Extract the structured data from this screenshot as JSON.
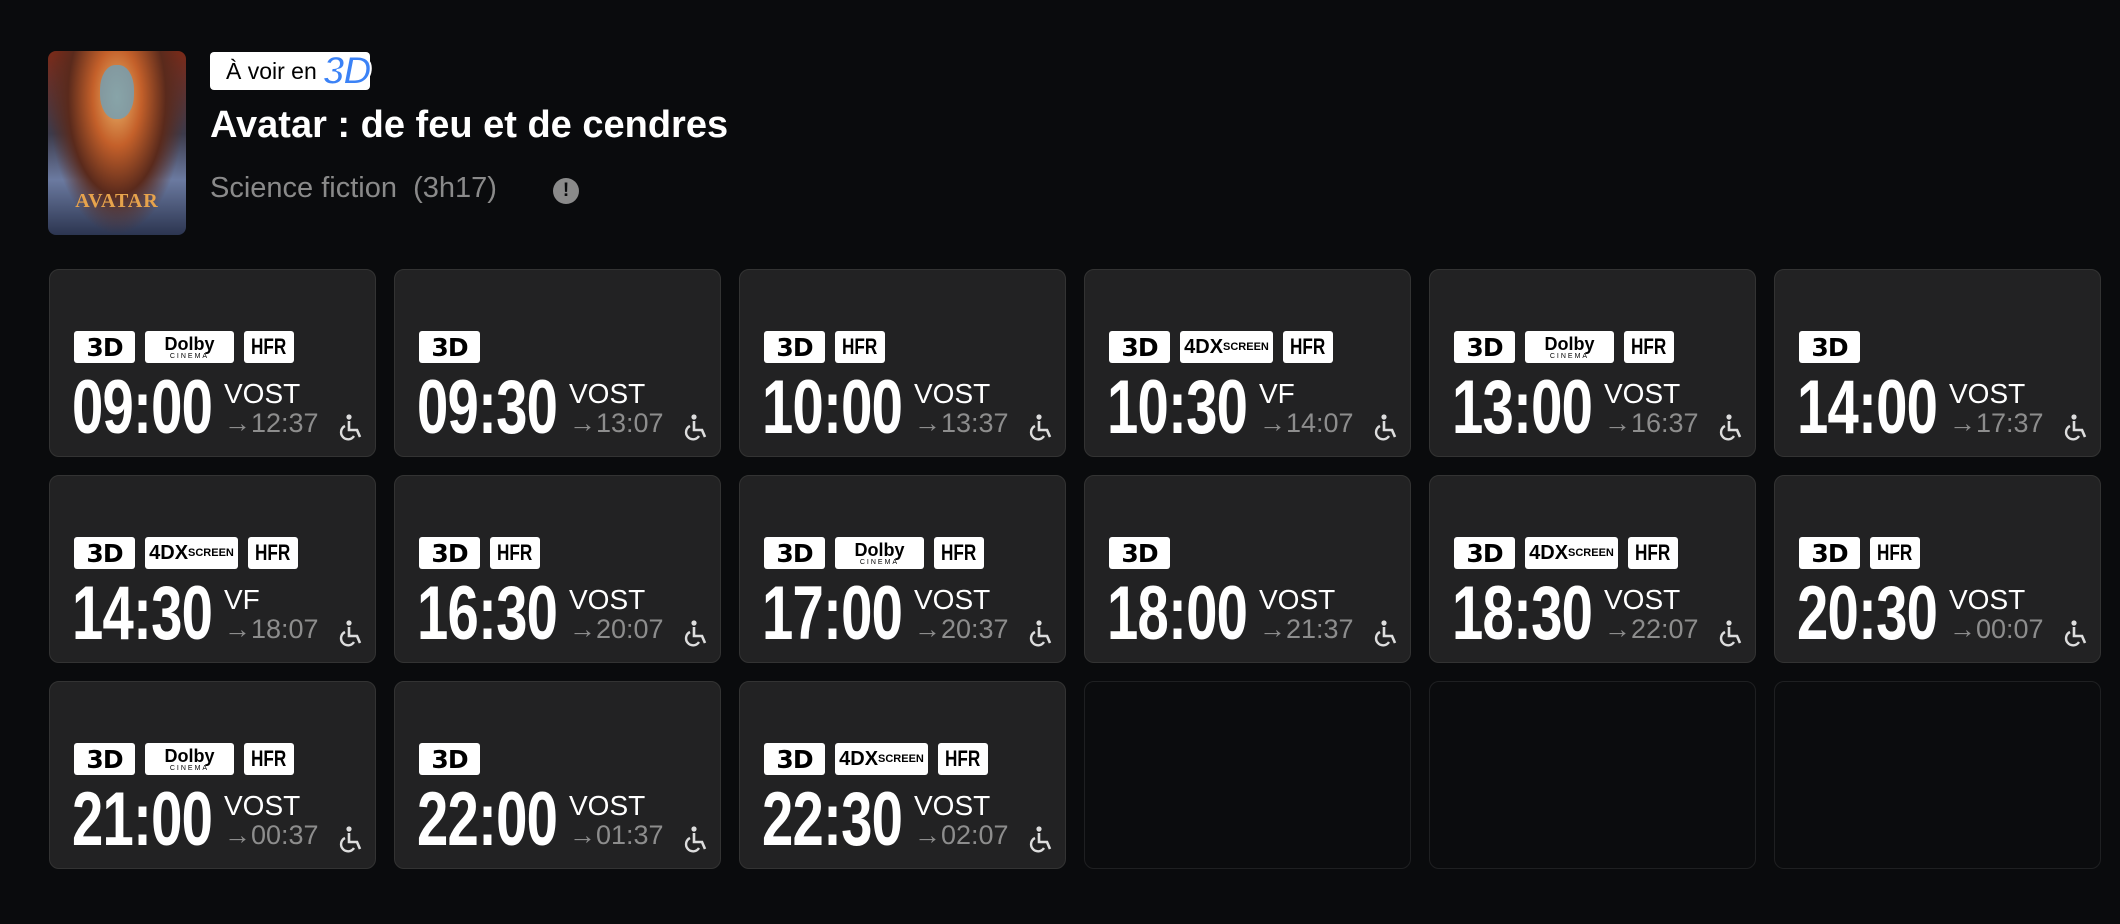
{
  "movie": {
    "badge_prefix": "À voir en",
    "badge_3d": "3D",
    "title": "Avatar : de feu et de cendres",
    "genre": "Science fiction",
    "duration": "(3h17)",
    "poster_text": "AVATAR",
    "info_icon": "info-icon"
  },
  "tags": {
    "3d": "3D",
    "dolby": "Dolby",
    "dolby_sub": "CINEMA",
    "hfr": "HFR",
    "fourdx": "4DX",
    "fourdx_sub": "SCREEN"
  },
  "colors": {
    "accent_3d": "#3b82f6",
    "background": "#0a0b0d",
    "card": "#222223"
  },
  "showtimes": [
    {
      "time": "09:00",
      "lang": "VOST",
      "end": "→12:37",
      "tags": [
        "3d",
        "dolby",
        "hfr"
      ],
      "accessible": true
    },
    {
      "time": "09:30",
      "lang": "VOST",
      "end": "→13:07",
      "tags": [
        "3d"
      ],
      "accessible": true
    },
    {
      "time": "10:00",
      "lang": "VOST",
      "end": "→13:37",
      "tags": [
        "3d",
        "hfr"
      ],
      "accessible": true
    },
    {
      "time": "10:30",
      "lang": "VF",
      "end": "→14:07",
      "tags": [
        "3d",
        "fourdx",
        "hfr"
      ],
      "accessible": true
    },
    {
      "time": "13:00",
      "lang": "VOST",
      "end": "→16:37",
      "tags": [
        "3d",
        "dolby",
        "hfr"
      ],
      "accessible": true
    },
    {
      "time": "14:00",
      "lang": "VOST",
      "end": "→17:37",
      "tags": [
        "3d"
      ],
      "accessible": true
    },
    {
      "time": "14:30",
      "lang": "VF",
      "end": "→18:07",
      "tags": [
        "3d",
        "fourdx",
        "hfr"
      ],
      "accessible": true
    },
    {
      "time": "16:30",
      "lang": "VOST",
      "end": "→20:07",
      "tags": [
        "3d",
        "hfr"
      ],
      "accessible": true
    },
    {
      "time": "17:00",
      "lang": "VOST",
      "end": "→20:37",
      "tags": [
        "3d",
        "dolby",
        "hfr"
      ],
      "accessible": true
    },
    {
      "time": "18:00",
      "lang": "VOST",
      "end": "→21:37",
      "tags": [
        "3d"
      ],
      "accessible": true
    },
    {
      "time": "18:30",
      "lang": "VOST",
      "end": "→22:07",
      "tags": [
        "3d",
        "fourdx",
        "hfr"
      ],
      "accessible": true
    },
    {
      "time": "20:30",
      "lang": "VOST",
      "end": "→00:07",
      "tags": [
        "3d",
        "hfr"
      ],
      "accessible": true
    },
    {
      "time": "21:00",
      "lang": "VOST",
      "end": "→00:37",
      "tags": [
        "3d",
        "dolby",
        "hfr"
      ],
      "accessible": true
    },
    {
      "time": "22:00",
      "lang": "VOST",
      "end": "→01:37",
      "tags": [
        "3d"
      ],
      "accessible": true
    },
    {
      "time": "22:30",
      "lang": "VOST",
      "end": "→02:07",
      "tags": [
        "3d",
        "fourdx",
        "hfr"
      ],
      "accessible": true
    }
  ],
  "empty_slots": 3
}
